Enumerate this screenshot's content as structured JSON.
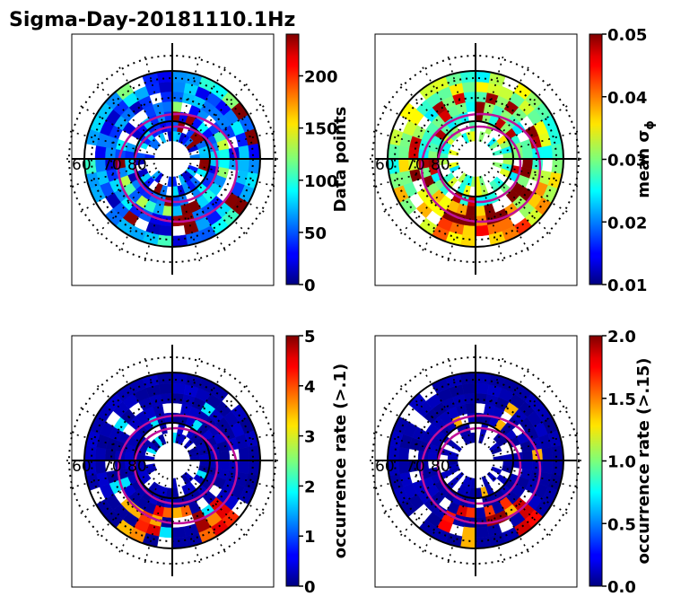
{
  "chart_data": [
    {
      "type": "heatmap",
      "projection": "polar",
      "title": "Sigma-Day-20181110.1Hz",
      "lat_labels": [
        "60",
        "70",
        "80"
      ],
      "colorbar": {
        "label": "Data points",
        "range": [
          0,
          240
        ],
        "ticks": [
          "0",
          "50",
          "100",
          "150",
          "200"
        ],
        "tick_values": [
          0,
          50,
          100,
          150,
          200
        ]
      },
      "field": "density"
    },
    {
      "type": "heatmap",
      "projection": "polar",
      "title": "",
      "lat_labels": [
        "60",
        "70",
        "80"
      ],
      "colorbar": {
        "label": "mean σ",
        "label_subscript": "ϕ",
        "range": [
          0.01,
          0.05
        ],
        "ticks": [
          "0.01",
          "0.02",
          "0.03",
          "0.04",
          "0.05"
        ],
        "tick_values": [
          0.01,
          0.02,
          0.03,
          0.04,
          0.05
        ]
      },
      "field": "sigma"
    },
    {
      "type": "heatmap",
      "projection": "polar",
      "title": "",
      "lat_labels": [
        "60",
        "70",
        "80"
      ],
      "colorbar": {
        "label": "occurrence rate (>.1)",
        "range": [
          0,
          5
        ],
        "ticks": [
          "0",
          "1",
          "2",
          "3",
          "4",
          "5"
        ],
        "tick_values": [
          0,
          1,
          2,
          3,
          4,
          5
        ]
      },
      "field": "occ1"
    },
    {
      "type": "heatmap",
      "projection": "polar",
      "title": "",
      "lat_labels": [
        "60",
        "70",
        "80"
      ],
      "colorbar": {
        "label": "occurrence rate (>.15)",
        "range": [
          0,
          2
        ],
        "ticks": [
          "0.0",
          "0.5",
          "1.0",
          "1.5",
          "2.0"
        ],
        "tick_values": [
          0,
          0.5,
          1.0,
          1.5,
          2.0
        ]
      },
      "field": "occ2"
    }
  ]
}
